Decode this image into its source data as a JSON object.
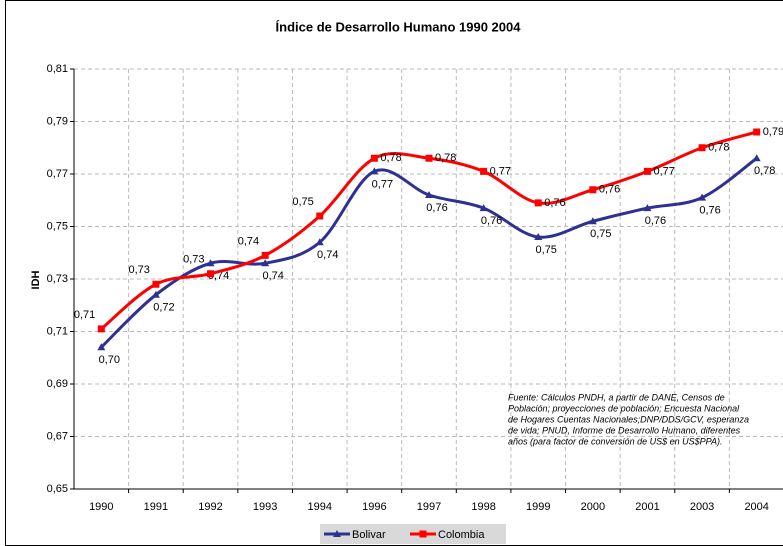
{
  "chart_data": {
    "type": "line",
    "title": "Índice de Desarrollo Humano 1990 2004",
    "y_label": "IDH",
    "categories": [
      "1990",
      "1991",
      "1992",
      "1993",
      "1994",
      "1996",
      "1997",
      "1998",
      "1999",
      "2000",
      "2001",
      "2003",
      "2004"
    ],
    "series": [
      {
        "name": "Bolivar",
        "color": "#2e3192",
        "marker": "triangle",
        "values": [
          0.704,
          0.724,
          0.736,
          0.736,
          0.744,
          0.771,
          0.762,
          0.757,
          0.746,
          0.752,
          0.757,
          0.761,
          0.776
        ],
        "value_labels": [
          "0,70",
          "0,72",
          "0,74",
          "0,74",
          "0,74",
          "0,77",
          "0,76",
          "0,76",
          "0,75",
          "0,75",
          "0,76",
          "0,76",
          "0,78"
        ]
      },
      {
        "name": "Colombia",
        "color": "#ff0000",
        "marker": "square",
        "values": [
          0.711,
          0.728,
          0.732,
          0.739,
          0.754,
          0.776,
          0.776,
          0.771,
          0.759,
          0.764,
          0.771,
          0.78,
          0.786
        ],
        "value_labels": [
          "0,71",
          "0,73",
          "0,73",
          "0,74",
          "0,75",
          "0,78",
          "0,78",
          "0,77",
          "0,76",
          "0,76",
          "0,77",
          "0,78",
          "0,79"
        ]
      }
    ],
    "ylim": [
      0.65,
      0.81
    ],
    "yticks": [
      {
        "value": 0.65,
        "label": "0,65"
      },
      {
        "value": 0.67,
        "label": "0,67"
      },
      {
        "value": 0.69,
        "label": "0,69"
      },
      {
        "value": 0.71,
        "label": "0,71"
      },
      {
        "value": 0.73,
        "label": "0,73"
      },
      {
        "value": 0.75,
        "label": "0,75"
      },
      {
        "value": 0.77,
        "label": "0,77"
      },
      {
        "value": 0.79,
        "label": "0,79"
      },
      {
        "value": 0.81,
        "label": "0,81"
      }
    ],
    "grid": true,
    "legend": "bottom",
    "annotation": [
      "Fuente: Cálculos PNDH, a partir de DANE, Censos de",
      "Población; proyecciones de población; Encuesta Nacional",
      "de Hogares Cuentas Nacionales;DNP/DDS/GCV, esperanza",
      "de vida; PNUD, Informe de Desarrollo Humano, diferentes",
      "años (para factor de conversión de US$ en US$PPA)."
    ]
  }
}
